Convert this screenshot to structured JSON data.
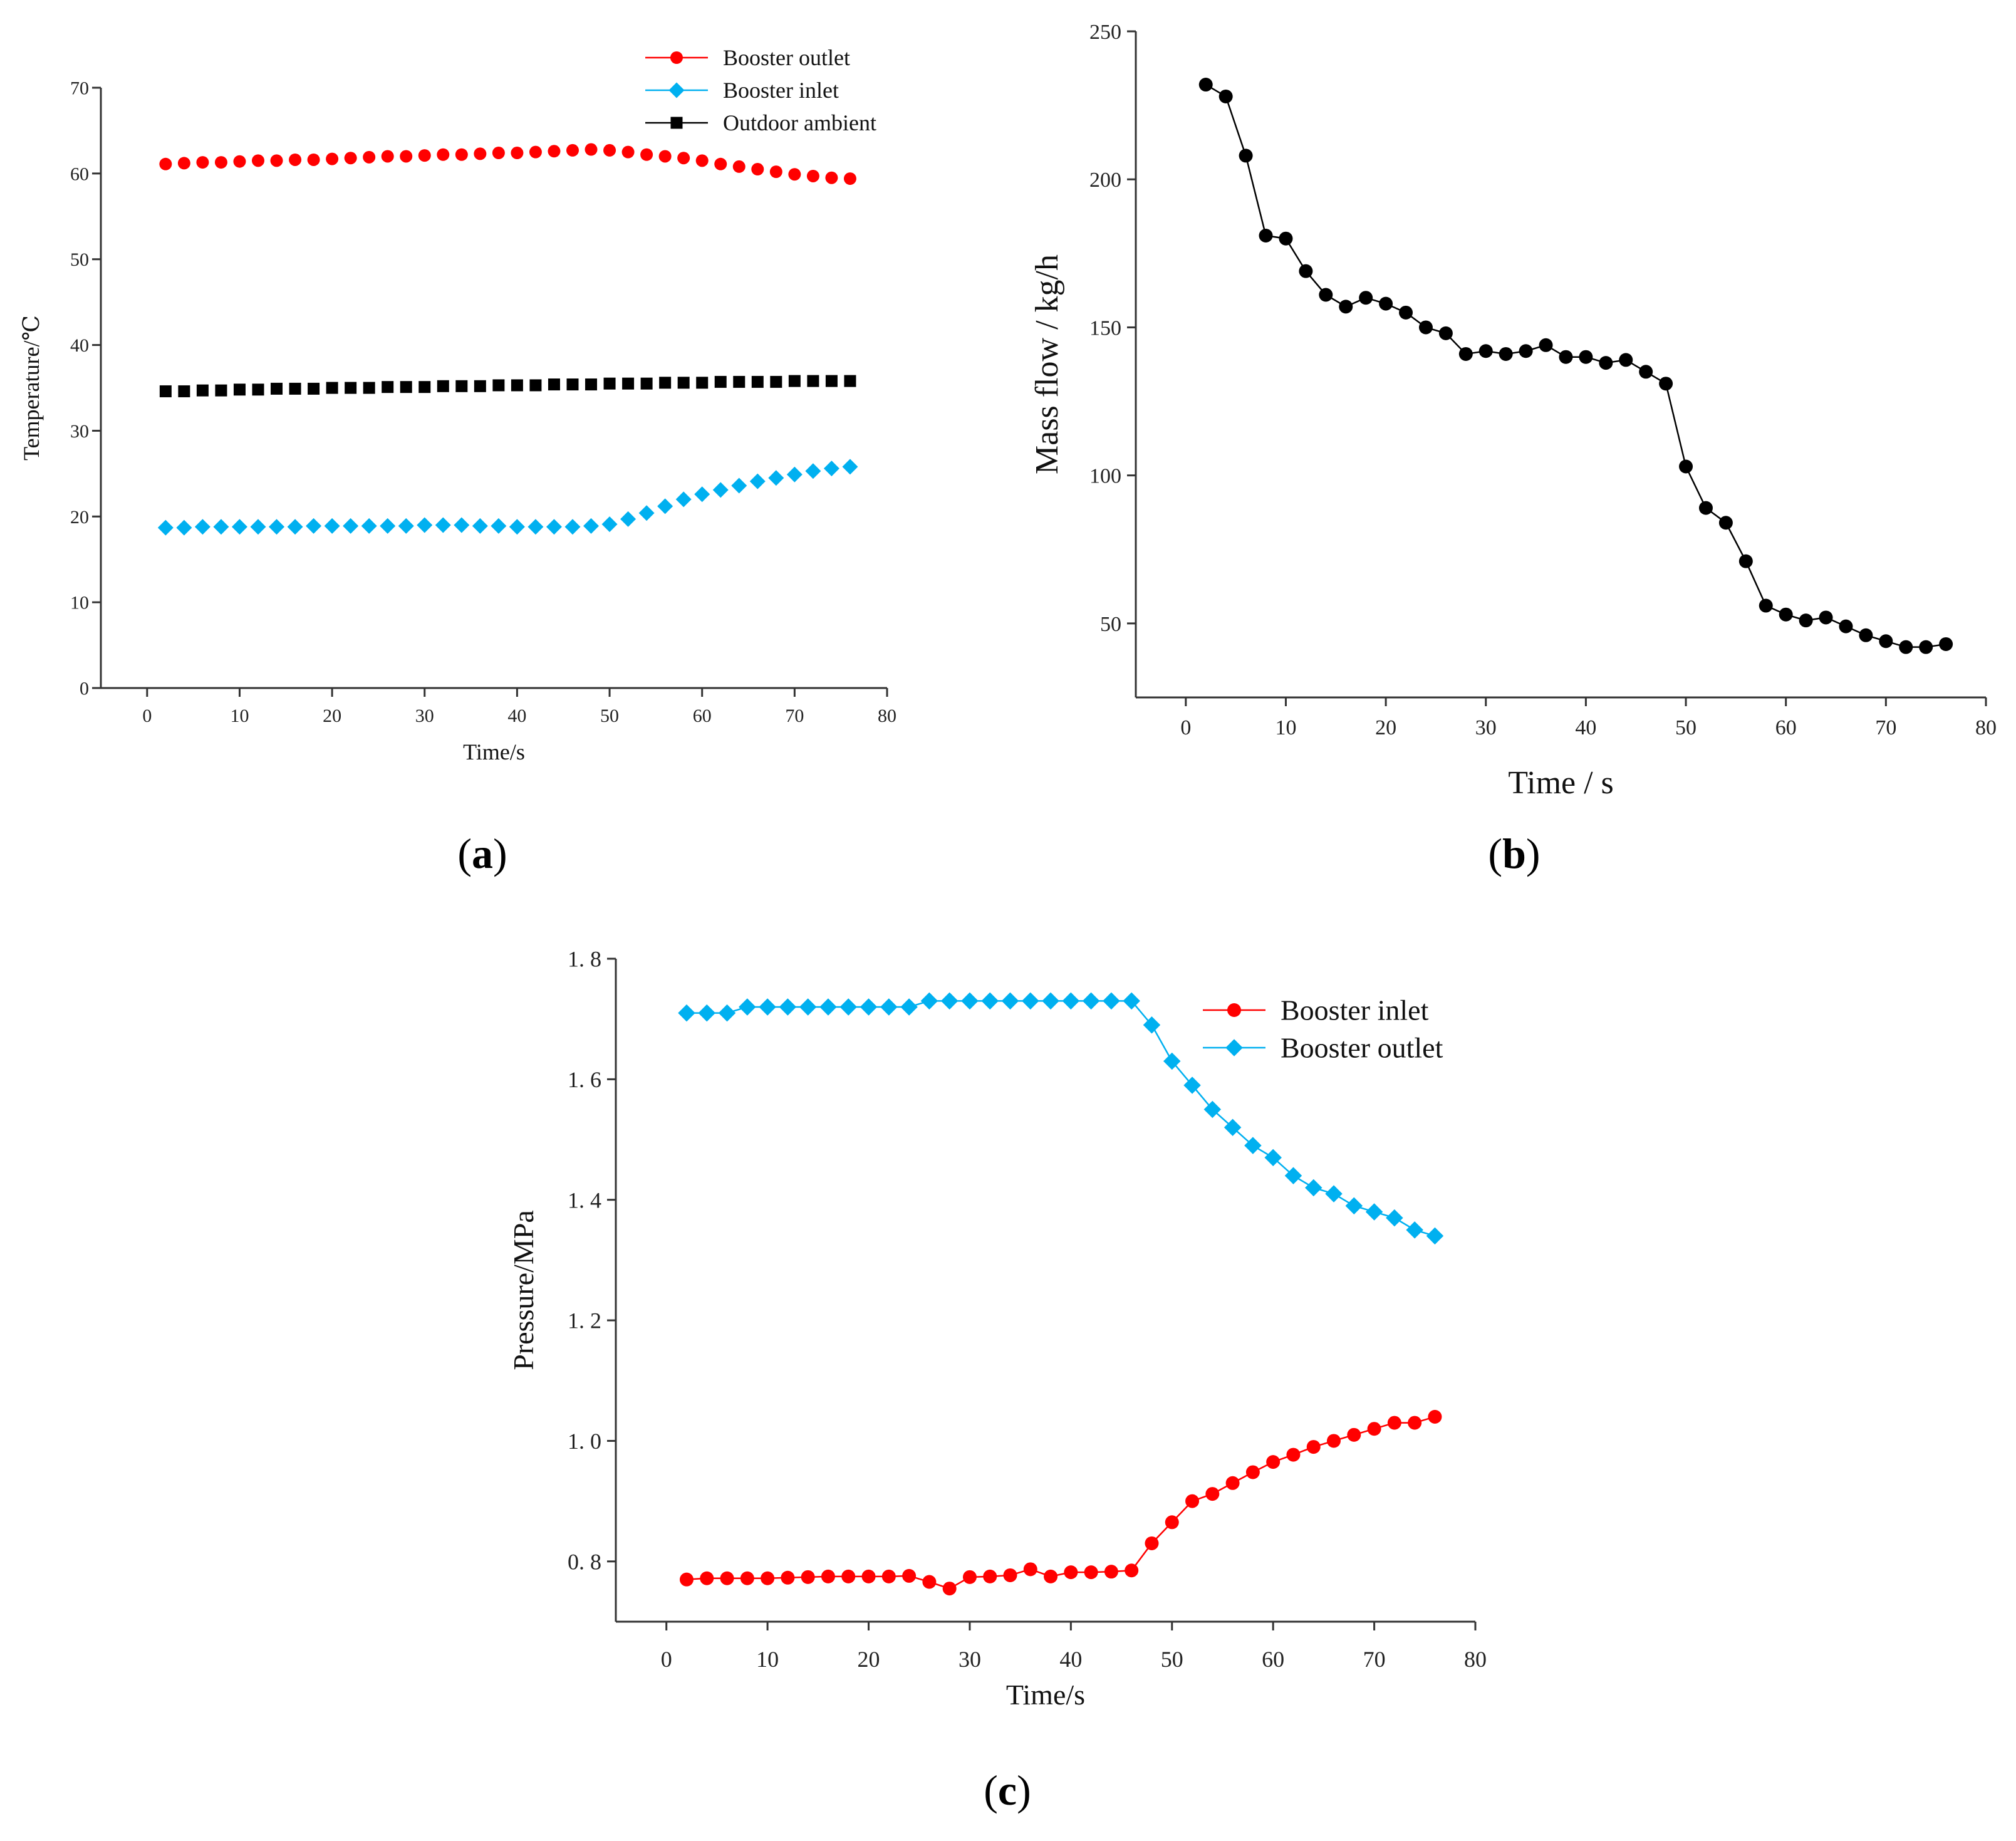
{
  "chart_data": [
    {
      "id": "a",
      "type": "scatter",
      "panel_label": "(a)",
      "panel_letter": "a",
      "title": "",
      "xlabel": "Time/s",
      "ylabel": "Temperature/℃",
      "xlim": [
        -5,
        80
      ],
      "ylim": [
        0,
        70
      ],
      "xticks": [
        0,
        10,
        20,
        30,
        40,
        50,
        60,
        70,
        80
      ],
      "yticks": [
        0,
        10,
        20,
        30,
        40,
        50,
        60,
        70
      ],
      "legend_position": "top-right",
      "grid": false,
      "series": [
        {
          "name": "Booster outlet",
          "color": "#ff0000",
          "marker": "circle",
          "connected": false,
          "x": [
            2,
            4,
            6,
            8,
            10,
            12,
            14,
            16,
            18,
            20,
            22,
            24,
            26,
            28,
            30,
            32,
            34,
            36,
            38,
            40,
            42,
            44,
            46,
            48,
            50,
            52,
            54,
            56,
            58,
            60,
            62,
            64,
            66,
            68,
            70,
            72,
            74,
            76
          ],
          "y": [
            61.1,
            61.2,
            61.3,
            61.3,
            61.4,
            61.5,
            61.5,
            61.6,
            61.6,
            61.7,
            61.8,
            61.9,
            62.0,
            62.0,
            62.1,
            62.2,
            62.2,
            62.3,
            62.4,
            62.4,
            62.5,
            62.6,
            62.7,
            62.8,
            62.7,
            62.5,
            62.2,
            62.0,
            61.8,
            61.5,
            61.1,
            60.8,
            60.5,
            60.2,
            59.9,
            59.7,
            59.5,
            59.4
          ]
        },
        {
          "name": "Booster inlet",
          "color": "#00b0f0",
          "marker": "diamond",
          "connected": false,
          "x": [
            2,
            4,
            6,
            8,
            10,
            12,
            14,
            16,
            18,
            20,
            22,
            24,
            26,
            28,
            30,
            32,
            34,
            36,
            38,
            40,
            42,
            44,
            46,
            48,
            50,
            52,
            54,
            56,
            58,
            60,
            62,
            64,
            66,
            68,
            70,
            72,
            74,
            76
          ],
          "y": [
            18.7,
            18.7,
            18.8,
            18.8,
            18.8,
            18.8,
            18.8,
            18.8,
            18.9,
            18.9,
            18.9,
            18.9,
            18.9,
            18.9,
            19.0,
            19.0,
            19.0,
            18.9,
            18.9,
            18.8,
            18.8,
            18.8,
            18.8,
            18.9,
            19.1,
            19.7,
            20.4,
            21.2,
            22.0,
            22.6,
            23.1,
            23.6,
            24.1,
            24.5,
            24.9,
            25.3,
            25.6,
            25.8
          ]
        },
        {
          "name": "Outdoor ambient",
          "color": "#000000",
          "marker": "square",
          "connected": false,
          "x": [
            2,
            4,
            6,
            8,
            10,
            12,
            14,
            16,
            18,
            20,
            22,
            24,
            26,
            28,
            30,
            32,
            34,
            36,
            38,
            40,
            42,
            44,
            46,
            48,
            50,
            52,
            54,
            56,
            58,
            60,
            62,
            64,
            66,
            68,
            70,
            72,
            74,
            76
          ],
          "y": [
            34.6,
            34.6,
            34.7,
            34.7,
            34.8,
            34.8,
            34.9,
            34.9,
            34.9,
            35.0,
            35.0,
            35.0,
            35.1,
            35.1,
            35.1,
            35.2,
            35.2,
            35.2,
            35.3,
            35.3,
            35.3,
            35.4,
            35.4,
            35.4,
            35.5,
            35.5,
            35.5,
            35.6,
            35.6,
            35.6,
            35.7,
            35.7,
            35.7,
            35.7,
            35.8,
            35.8,
            35.8,
            35.8
          ]
        }
      ]
    },
    {
      "id": "b",
      "type": "line",
      "panel_label": "(b)",
      "panel_letter": "b",
      "title": "",
      "xlabel": "Time / s",
      "ylabel": "Mass flow / kg/h",
      "xlim": [
        -5,
        80
      ],
      "ylim": [
        25,
        250
      ],
      "xticks": [
        0,
        10,
        20,
        30,
        40,
        50,
        60,
        70,
        80
      ],
      "yticks": [
        50,
        100,
        150,
        200,
        250
      ],
      "legend_position": "none",
      "grid": false,
      "series": [
        {
          "name": "Mass flow",
          "color": "#000000",
          "marker": "circle",
          "connected": true,
          "x": [
            2,
            4,
            6,
            8,
            10,
            12,
            14,
            16,
            18,
            20,
            22,
            24,
            26,
            28,
            30,
            32,
            34,
            36,
            38,
            40,
            42,
            44,
            46,
            48,
            50,
            52,
            54,
            56,
            58,
            60,
            62,
            64,
            66,
            68,
            70,
            72,
            74,
            76
          ],
          "y": [
            232,
            228,
            208,
            181,
            180,
            169,
            161,
            157,
            160,
            158,
            155,
            150,
            148,
            141,
            142,
            141,
            142,
            144,
            140,
            140,
            138,
            139,
            135,
            131,
            103,
            89,
            84,
            71,
            56,
            53,
            51,
            52,
            49,
            46,
            44,
            42,
            42,
            43
          ]
        }
      ]
    },
    {
      "id": "c",
      "type": "line",
      "panel_label": "(c)",
      "panel_letter": "c",
      "title": "",
      "xlabel": "Time/s",
      "ylabel": "Pressure/MPa",
      "xlim": [
        -5,
        80
      ],
      "ylim": [
        0.7,
        1.8
      ],
      "xticks": [
        0,
        10,
        20,
        30,
        40,
        50,
        60,
        70,
        80
      ],
      "yticks": [
        0.8,
        1.0,
        1.2,
        1.4,
        1.6,
        1.8
      ],
      "ytick_labels": [
        "0. 8",
        "1. 0",
        "1. 2",
        "1. 4",
        "1. 6",
        "1. 8"
      ],
      "legend_position": "top-right",
      "grid": false,
      "series": [
        {
          "name": "Booster inlet",
          "color": "#ff0000",
          "marker": "circle",
          "connected": true,
          "x": [
            2,
            4,
            6,
            8,
            10,
            12,
            14,
            16,
            18,
            20,
            22,
            24,
            26,
            28,
            30,
            32,
            34,
            36,
            38,
            40,
            42,
            44,
            46,
            48,
            50,
            52,
            54,
            56,
            58,
            60,
            62,
            64,
            66,
            68,
            70,
            72,
            74,
            76
          ],
          "y": [
            0.77,
            0.772,
            0.772,
            0.772,
            0.772,
            0.773,
            0.774,
            0.775,
            0.775,
            0.775,
            0.775,
            0.776,
            0.766,
            0.755,
            0.774,
            0.775,
            0.777,
            0.787,
            0.775,
            0.782,
            0.782,
            0.783,
            0.785,
            0.83,
            0.865,
            0.9,
            0.912,
            0.93,
            0.948,
            0.965,
            0.977,
            0.99,
            1.0,
            1.01,
            1.02,
            1.03,
            1.03,
            1.04
          ]
        },
        {
          "name": "Booster outlet",
          "color": "#00b0f0",
          "marker": "diamond",
          "connected": true,
          "x": [
            2,
            4,
            6,
            8,
            10,
            12,
            14,
            16,
            18,
            20,
            22,
            24,
            26,
            28,
            30,
            32,
            34,
            36,
            38,
            40,
            42,
            44,
            46,
            48,
            50,
            52,
            54,
            56,
            58,
            60,
            62,
            64,
            66,
            68,
            70,
            72,
            74,
            76
          ],
          "y": [
            1.71,
            1.71,
            1.71,
            1.72,
            1.72,
            1.72,
            1.72,
            1.72,
            1.72,
            1.72,
            1.72,
            1.72,
            1.73,
            1.73,
            1.73,
            1.73,
            1.73,
            1.73,
            1.73,
            1.73,
            1.73,
            1.73,
            1.73,
            1.69,
            1.63,
            1.59,
            1.55,
            1.52,
            1.49,
            1.47,
            1.44,
            1.42,
            1.41,
            1.39,
            1.38,
            1.37,
            1.35,
            1.34
          ]
        }
      ]
    }
  ]
}
